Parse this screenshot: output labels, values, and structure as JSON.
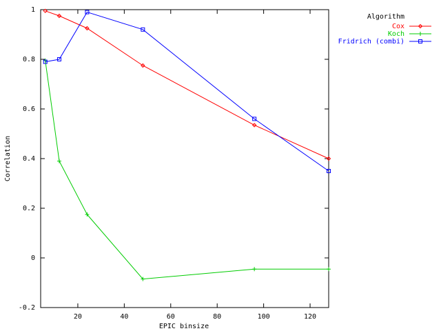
{
  "chart_data": {
    "type": "line",
    "xlabel": "EPIC binsize",
    "ylabel": "Correlation",
    "xlim": [
      4,
      128
    ],
    "ylim": [
      -0.2,
      1.0
    ],
    "x_ticks": [
      20,
      40,
      60,
      80,
      100,
      120
    ],
    "y_ticks": [
      -0.2,
      0,
      0.2,
      0.4,
      0.6,
      0.8,
      1.0
    ],
    "x_tick_labels": [
      "20",
      "40",
      "60",
      "80",
      "100",
      "120"
    ],
    "y_tick_labels": [
      "-0.2",
      "0",
      "0.2",
      "0.4",
      "0.6",
      "0.8",
      "1"
    ],
    "grid": false,
    "legend": {
      "title": "Algorithm",
      "placement": "outside-top-right"
    },
    "x": [
      6,
      12,
      24,
      48,
      96,
      128
    ],
    "series": [
      {
        "name": "Cox",
        "color": "#ff0000",
        "marker": "diamond",
        "values": [
          0.995,
          0.975,
          0.925,
          0.775,
          0.535,
          0.4
        ]
      },
      {
        "name": "Koch",
        "color": "#00cc00",
        "marker": "plus",
        "values": [
          0.795,
          0.39,
          0.175,
          -0.085,
          -0.045,
          -0.045
        ]
      },
      {
        "name": "Fridrich (combi)",
        "color": "#0000ff",
        "marker": "square",
        "values": [
          0.79,
          0.8,
          0.99,
          0.92,
          0.56,
          0.35
        ]
      }
    ]
  }
}
